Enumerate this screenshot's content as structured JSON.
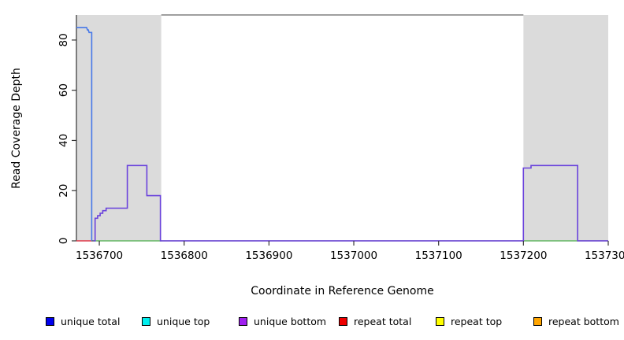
{
  "axes": {
    "xlabel": "Coordinate in Reference Genome",
    "ylabel": "Read Coverage Depth"
  },
  "legend": {
    "items": [
      {
        "label": "unique total",
        "color": "#0000EE"
      },
      {
        "label": "unique top",
        "color": "#00EEEE"
      },
      {
        "label": "unique bottom",
        "color": "#A020F0"
      },
      {
        "label": "repeat total",
        "color": "#EE0000"
      },
      {
        "label": "repeat top",
        "color": "#FFFF00"
      },
      {
        "label": "repeat bottom",
        "color": "#FFA500"
      }
    ]
  },
  "chart_data": {
    "type": "line",
    "title": "",
    "xlabel": "Coordinate in Reference Genome",
    "ylabel": "Read Coverage Depth",
    "xlim": [
      1536673,
      1537300
    ],
    "ylim": [
      0,
      90
    ],
    "x_ticks": [
      1536700,
      1536800,
      1536900,
      1537000,
      1537100,
      1537200,
      1537300
    ],
    "y_ticks": [
      0,
      20,
      40,
      60,
      80
    ],
    "grid": false,
    "band_color": "#DBDBDB",
    "shaded_regions": [
      {
        "x0": 1536673,
        "x1": 1536773
      },
      {
        "x0": 1537200,
        "x1": 1537300
      }
    ],
    "series": [
      {
        "id": "repeat-total-baseline",
        "name": "repeat total (visible baseline)",
        "color": "#EE4455",
        "segments": [
          [
            [
              1536673,
              0
            ],
            [
              1536691,
              0
            ]
          ]
        ]
      },
      {
        "id": "green-baseline",
        "name": "baseline overlap (green)",
        "color": "#6FC46F",
        "segments": [
          [
            [
              1536693,
              0
            ],
            [
              1536773,
              0
            ]
          ],
          [
            [
              1537200,
              0
            ],
            [
              1537264,
              0
            ]
          ]
        ]
      },
      {
        "id": "unique-total",
        "name": "unique total",
        "color": "#4678E8",
        "segments": [
          [
            [
              1536673,
              85
            ],
            [
              1536685,
              85
            ],
            [
              1536686,
              84
            ],
            [
              1536687,
              84
            ],
            [
              1536688,
              83
            ],
            [
              1536691,
              83
            ],
            [
              1536691,
              0
            ]
          ]
        ]
      },
      {
        "id": "unique-bottom",
        "name": "unique bottom",
        "color": "#6941DC",
        "segments": [
          [
            [
              1536693,
              0
            ],
            [
              1536695,
              0
            ],
            [
              1536695,
              9
            ],
            [
              1536698,
              9
            ],
            [
              1536698,
              10
            ],
            [
              1536701,
              10
            ],
            [
              1536701,
              11
            ],
            [
              1536704,
              11
            ],
            [
              1536704,
              12
            ],
            [
              1536708,
              12
            ],
            [
              1536708,
              13
            ],
            [
              1536733,
              13
            ],
            [
              1536733,
              30
            ],
            [
              1536756,
              30
            ],
            [
              1536756,
              18
            ],
            [
              1536772,
              18
            ],
            [
              1536772,
              0
            ],
            [
              1537200,
              0
            ],
            [
              1537200,
              29
            ],
            [
              1537209,
              29
            ],
            [
              1537209,
              30
            ],
            [
              1537264,
              30
            ],
            [
              1537264,
              0
            ],
            [
              1537300,
              0
            ]
          ]
        ]
      }
    ]
  }
}
